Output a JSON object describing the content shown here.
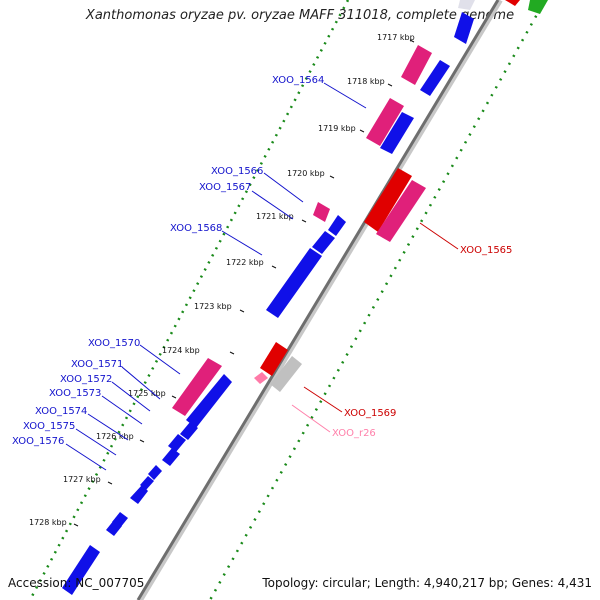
{
  "title": "Xanthomonas oryzae pv. oryzae MAFF 311018, complete genome",
  "accession_label": "Accession: NC_007705",
  "stats_label": "Topology: circular; Length: 4,940,217 bp; Genes: 4,431",
  "colors": {
    "cds_forward": "#e0207a",
    "cds_reverse": "#1010e8",
    "cds_reverse_right": "#e00000",
    "pseudo": "#c0c0c0",
    "rna": "#ff7aa8",
    "gc_dot": "#1a8a1a",
    "axis": "#707070",
    "label_blue": "#1212cc",
    "label_red": "#cc0000",
    "label_pink": "#ff80aa"
  },
  "kbp_marks": [
    "1717 kbp",
    "1718 kbp",
    "1719 kbp",
    "1720 kbp",
    "1721 kbp",
    "1722 kbp",
    "1723 kbp",
    "1724 kbp",
    "1725 kbp",
    "1726 kbp",
    "1727 kbp",
    "1728 kbp"
  ],
  "gene_labels_left": [
    "XOO_1564",
    "XOO_1566",
    "XOO_1567",
    "XOO_1568",
    "XOO_1570",
    "XOO_1571",
    "XOO_1572",
    "XOO_1573",
    "XOO_1574",
    "XOO_1575",
    "XOO_1576"
  ],
  "gene_labels_right": [
    "XOO_1565",
    "XOO_1569",
    "XOO_r26"
  ]
}
